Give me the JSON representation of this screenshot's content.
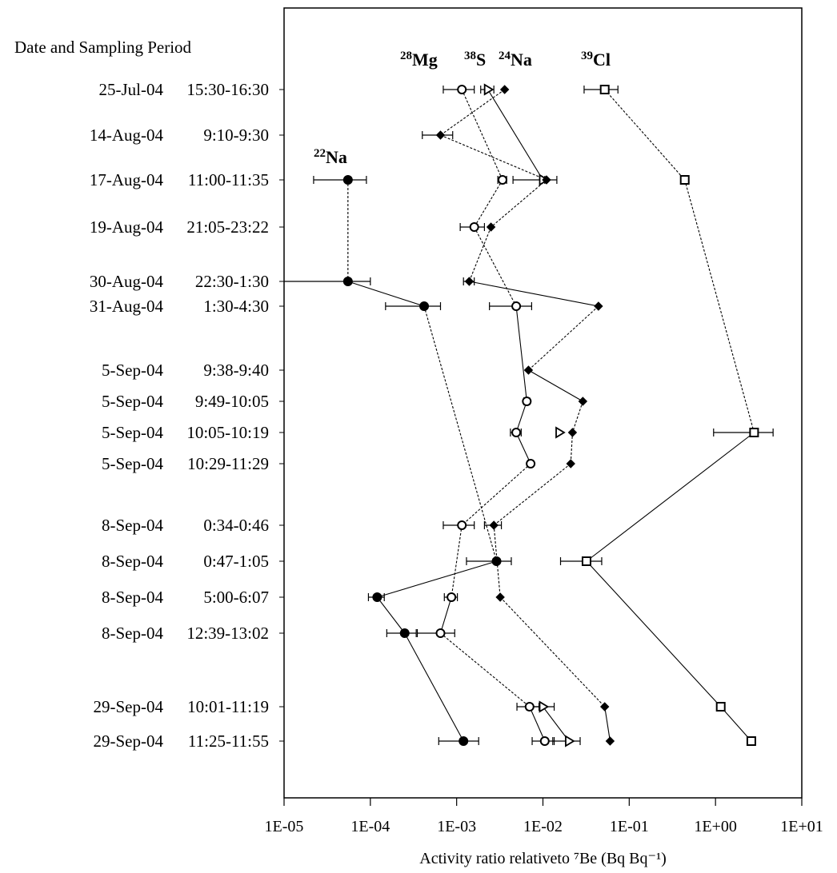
{
  "row_header": "Date and Sampling Period",
  "chart_data": {
    "type": "scatter",
    "xscale": "log",
    "xlim": [
      1e-05,
      10
    ],
    "xlabel": "Activity ratio relativeto ⁷Be (Bq Bq⁻¹)",
    "xticks": [
      "1E-05",
      "1E-04",
      "1E-03",
      "1E-02",
      "1E-01",
      "1E+00",
      "1E+01"
    ],
    "rows": [
      {
        "date": "25-Jul-04",
        "period": "15:30-16:30"
      },
      {
        "date": "14-Aug-04",
        "period": "9:10-9:30"
      },
      {
        "date": "17-Aug-04",
        "period": "11:00-11:35"
      },
      {
        "date": "19-Aug-04",
        "period": "21:05-23:22"
      },
      {
        "date": "30-Aug-04",
        "period": "22:30-1:30"
      },
      {
        "date": "31-Aug-04",
        "period": "1:30-4:30"
      },
      {
        "date": "5-Sep-04",
        "period": "9:38-9:40"
      },
      {
        "date": "5-Sep-04",
        "period": "9:49-10:05"
      },
      {
        "date": "5-Sep-04",
        "period": "10:05-10:19"
      },
      {
        "date": "5-Sep-04",
        "period": "10:29-11:29"
      },
      {
        "date": "8-Sep-04",
        "period": "0:34-0:46"
      },
      {
        "date": "8-Sep-04",
        "period": "0:47-1:05"
      },
      {
        "date": "8-Sep-04",
        "period": "5:00-6:07"
      },
      {
        "date": "8-Sep-04",
        "period": "12:39-13:02"
      },
      {
        "date": "29-Sep-04",
        "period": "10:01-11:19"
      },
      {
        "date": "29-Sep-04",
        "period": "11:25-11:55"
      }
    ],
    "series": [
      {
        "name": "²²Na",
        "marker": "filled-circle",
        "line": "dashed",
        "points": [
          {
            "row": 2,
            "value": 5.5e-05,
            "err": [
              2.2e-05,
              9e-05
            ]
          },
          {
            "row": 4,
            "value": 5.5e-05,
            "err": [
              1e-07,
              0.0001
            ]
          },
          {
            "row": 5,
            "value": 0.00042,
            "err": [
              0.00015,
              0.00065
            ]
          },
          {
            "row": 11,
            "value": 0.0029,
            "err": [
              0.0013,
              0.0043
            ]
          },
          {
            "row": 12,
            "value": 0.00012,
            "err": [
              9.5e-05,
              0.000145
            ]
          },
          {
            "row": 13,
            "value": 0.00025,
            "err": [
              0.000155,
              0.00034
            ]
          },
          {
            "row": 15,
            "value": 0.0012,
            "err": [
              0.00062,
              0.0018
            ]
          }
        ]
      },
      {
        "name": "²⁸Mg",
        "marker": "open-circle",
        "line": "dashed",
        "points": [
          {
            "row": 0,
            "value": 0.00115,
            "err": [
              0.0007,
              0.0016
            ]
          },
          {
            "row": 2,
            "value": 0.0034,
            "err": [
              0.003,
              0.0038
            ]
          },
          {
            "row": 3,
            "value": 0.0016,
            "err": [
              0.0011,
              0.0021
            ]
          },
          {
            "row": 5,
            "value": 0.0049,
            "err": [
              0.0024,
              0.0074
            ]
          },
          {
            "row": 7,
            "value": 0.0065,
            "err": [
              0.006,
              0.007
            ]
          },
          {
            "row": 8,
            "value": 0.0049,
            "err": [
              0.0042,
              0.0056
            ]
          },
          {
            "row": 9,
            "value": 0.0072,
            "err": [
              0.0067,
              0.0077
            ]
          },
          {
            "row": 10,
            "value": 0.00115,
            "err": [
              0.0007,
              0.0016
            ]
          },
          {
            "row": 12,
            "value": 0.00087,
            "err": [
              0.00072,
              0.00102
            ]
          },
          {
            "row": 13,
            "value": 0.00065,
            "err": [
              0.00035,
              0.00095
            ]
          },
          {
            "row": 14,
            "value": 0.007,
            "err": [
              0.005,
              0.009
            ]
          },
          {
            "row": 15,
            "value": 0.0105,
            "err": [
              0.0075,
              0.0135
            ]
          }
        ]
      },
      {
        "name": "³⁸S",
        "marker": "open-triangle",
        "line": "solid",
        "points": [
          {
            "row": 0,
            "value": 0.0023,
            "err": [
              0.0019,
              0.0027
            ]
          },
          {
            "row": 2,
            "value": 0.01,
            "err": [
              0.0095,
              0.0105
            ]
          },
          {
            "row": 8,
            "value": 0.0155
          },
          {
            "row": 14,
            "value": 0.01,
            "err": [
              0.0065,
              0.0135
            ]
          },
          {
            "row": 15,
            "value": 0.02,
            "err": [
              0.013,
              0.027
            ]
          }
        ]
      },
      {
        "name": "²⁴Na",
        "marker": "filled-diamond",
        "line": "dashed",
        "points": [
          {
            "row": 0,
            "value": 0.0036
          },
          {
            "row": 1,
            "value": 0.00065,
            "err": [
              0.0004,
              0.0009
            ]
          },
          {
            "row": 2,
            "value": 0.011,
            "err": [
              0.0045,
              0.0145
            ]
          },
          {
            "row": 3,
            "value": 0.0025
          },
          {
            "row": 4,
            "value": 0.0014,
            "err": [
              0.0012,
              0.0016
            ]
          },
          {
            "row": 5,
            "value": 0.044
          },
          {
            "row": 6,
            "value": 0.0068
          },
          {
            "row": 7,
            "value": 0.029
          },
          {
            "row": 8,
            "value": 0.022
          },
          {
            "row": 9,
            "value": 0.021
          },
          {
            "row": 10,
            "value": 0.0027,
            "err": [
              0.0021,
              0.0033
            ]
          },
          {
            "row": 12,
            "value": 0.0032
          },
          {
            "row": 14,
            "value": 0.052
          },
          {
            "row": 15,
            "value": 0.06
          }
        ]
      },
      {
        "name": "³⁹Cl",
        "marker": "open-square",
        "line": "dashed",
        "points": [
          {
            "row": 0,
            "value": 0.052,
            "err": [
              0.03,
              0.074
            ]
          },
          {
            "row": 2,
            "value": 0.44,
            "err": [
              0.4,
              0.48
            ]
          },
          {
            "row": 8,
            "value": 2.8,
            "err": [
              0.95,
              4.65
            ]
          },
          {
            "row": 11,
            "value": 0.032,
            "err": [
              0.016,
              0.048
            ]
          },
          {
            "row": 14,
            "value": 1.15
          },
          {
            "row": 15,
            "value": 2.6
          }
        ]
      }
    ],
    "segments": [
      {
        "series": "²²Na",
        "from": 2,
        "to": 4,
        "style": "dashed"
      },
      {
        "series": "²²Na",
        "from": 4,
        "to": 5,
        "style": "solid"
      },
      {
        "series": "²²Na",
        "from": 5,
        "to": 11,
        "style": "dashed"
      },
      {
        "series": "²²Na",
        "from": 11,
        "to": 12,
        "style": "solid"
      },
      {
        "series": "²²Na",
        "from": 12,
        "to": 13,
        "style": "solid"
      },
      {
        "series": "²²Na",
        "from": 13,
        "to": 15,
        "style": "solid"
      },
      {
        "series": "²⁸Mg",
        "from": 0,
        "to": 2,
        "style": "dashed"
      },
      {
        "series": "²⁸Mg",
        "from": 2,
        "to": 3,
        "style": "dashed"
      },
      {
        "series": "²⁸Mg",
        "from": 3,
        "to": 5,
        "style": "dashed"
      },
      {
        "series": "²⁸Mg",
        "from": 5,
        "to": 7,
        "style": "solid"
      },
      {
        "series": "²⁸Mg",
        "from": 7,
        "to": 8,
        "style": "solid"
      },
      {
        "series": "²⁸Mg",
        "from": 8,
        "to": 9,
        "style": "solid"
      },
      {
        "series": "²⁸Mg",
        "from": 9,
        "to": 10,
        "style": "dashed"
      },
      {
        "series": "²⁸Mg",
        "from": 10,
        "to": 12,
        "style": "dashed"
      },
      {
        "series": "²⁸Mg",
        "from": 12,
        "to": 13,
        "style": "solid"
      },
      {
        "series": "²⁸Mg",
        "from": 13,
        "to": 14,
        "style": "dashed"
      },
      {
        "series": "²⁸Mg",
        "from": 14,
        "to": 15,
        "style": "solid"
      },
      {
        "series": "³⁸S",
        "from": 0,
        "to": 2,
        "style": "solid"
      },
      {
        "series": "³⁸S",
        "from": 14,
        "to": 15,
        "style": "solid"
      },
      {
        "series": "²⁴Na",
        "from": 0,
        "to": 1,
        "style": "dashed"
      },
      {
        "series": "²⁴Na",
        "from": 1,
        "to": 2,
        "style": "dashed"
      },
      {
        "series": "²⁴Na",
        "from": 2,
        "to": 3,
        "style": "dashed"
      },
      {
        "series": "²⁴Na",
        "from": 3,
        "to": 4,
        "style": "dashed"
      },
      {
        "series": "²⁴Na",
        "from": 4,
        "to": 5,
        "style": "solid"
      },
      {
        "series": "²⁴Na",
        "from": 5,
        "to": 6,
        "style": "dashed"
      },
      {
        "series": "²⁴Na",
        "from": 6,
        "to": 7,
        "style": "solid"
      },
      {
        "series": "²⁴Na",
        "from": 7,
        "to": 8,
        "style": "dashed"
      },
      {
        "series": "²⁴Na",
        "from": 8,
        "to": 9,
        "style": "dashed"
      },
      {
        "series": "²⁴Na",
        "from": 9,
        "to": 10,
        "style": "dashed"
      },
      {
        "series": "²⁴Na",
        "from": 10,
        "to": 12,
        "style": "dashed"
      },
      {
        "series": "²⁴Na",
        "from": 12,
        "to": 14,
        "style": "dashed"
      },
      {
        "series": "²⁴Na",
        "from": 14,
        "to": 15,
        "style": "solid"
      },
      {
        "series": "³⁹Cl",
        "from": 0,
        "to": 2,
        "style": "dashed"
      },
      {
        "series": "³⁹Cl",
        "from": 2,
        "to": 8,
        "style": "dashed"
      },
      {
        "series": "³⁹Cl",
        "from": 8,
        "to": 11,
        "style": "solid"
      },
      {
        "series": "³⁹Cl",
        "from": 11,
        "to": 14,
        "style": "solid"
      },
      {
        "series": "³⁹Cl",
        "from": 14,
        "to": 15,
        "style": "solid"
      }
    ]
  }
}
